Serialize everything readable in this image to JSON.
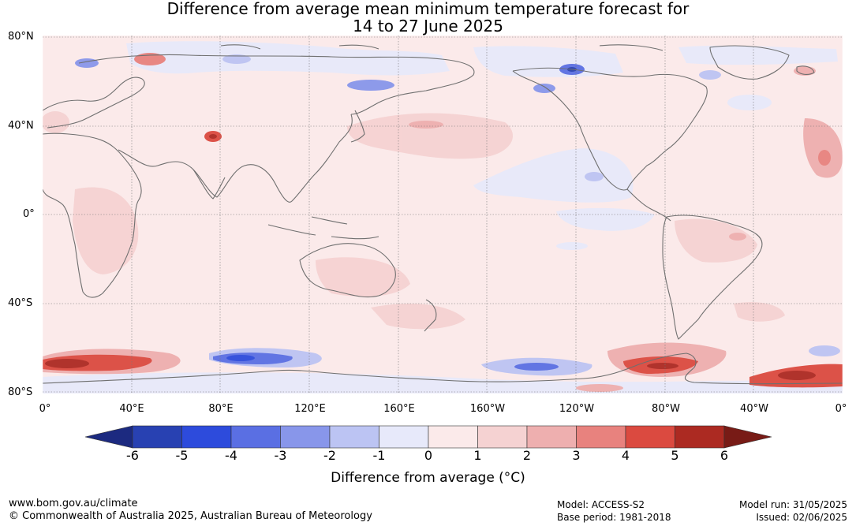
{
  "title": {
    "line1": "Difference from average mean minimum temperature forecast for",
    "line2": "14 to 27 June 2025"
  },
  "map": {
    "lat_labels": [
      "80°N",
      "40°N",
      "0°",
      "40°S",
      "80°S"
    ],
    "lon_labels": [
      "0°",
      "40°E",
      "80°E",
      "120°E",
      "160°E",
      "160°W",
      "120°W",
      "80°W",
      "40°W",
      "0°"
    ],
    "land_color": "#fbeaea",
    "coast_color": "#6f6f6f",
    "regions": [
      {
        "name": "southern-ocean-warm-atlantic",
        "bin": 5,
        "lon": [
          -10,
          40
        ],
        "lat": [
          -70,
          -60
        ]
      },
      {
        "name": "southern-ocean-cool-indian",
        "bin": -4,
        "lon": [
          75,
          120
        ],
        "lat": [
          -68,
          -58
        ]
      },
      {
        "name": "southern-ocean-cool-pacific",
        "bin": -3,
        "lon": [
          190,
          240
        ],
        "lat": [
          -70,
          -60
        ]
      },
      {
        "name": "southern-ocean-warm-east-pacific",
        "bin": 4,
        "lon": [
          260,
          310
        ],
        "lat": [
          -72,
          -62
        ]
      },
      {
        "name": "southern-ocean-warm-south-atlantic",
        "bin": 5,
        "lon": [
          315,
          360
        ],
        "lat": [
          -72,
          -62
        ]
      },
      {
        "name": "arctic-cool-eurasia",
        "bin": -1,
        "lon": [
          20,
          170
        ],
        "lat": [
          62,
          80
        ]
      },
      {
        "name": "north-pacific-cool",
        "bin": -1,
        "lon": [
          190,
          290
        ],
        "lat": [
          5,
          30
        ]
      },
      {
        "name": "tibet-warm",
        "bin": 4,
        "lon": [
          70,
          85
        ],
        "lat": [
          32,
          38
        ]
      },
      {
        "name": "east-pacific-warm",
        "bin": 1,
        "lon": [
          170,
          250
        ],
        "lat": [
          30,
          45
        ]
      }
    ]
  },
  "colorbar": {
    "bins": [
      {
        "lo": -6,
        "hi": -5,
        "color": "#2841b2"
      },
      {
        "lo": -5,
        "hi": -4,
        "color": "#2d4bdc"
      },
      {
        "lo": -4,
        "hi": -3,
        "color": "#5a6fe3"
      },
      {
        "lo": -3,
        "hi": -2,
        "color": "#8896ea"
      },
      {
        "lo": -2,
        "hi": -1,
        "color": "#bcc4f3"
      },
      {
        "lo": -1,
        "hi": 0,
        "color": "#e7e9fa"
      },
      {
        "lo": 0,
        "hi": 1,
        "color": "#fbeaea"
      },
      {
        "lo": 1,
        "hi": 2,
        "color": "#f5d2d2"
      },
      {
        "lo": 2,
        "hi": 3,
        "color": "#eeafaf"
      },
      {
        "lo": 3,
        "hi": 4,
        "color": "#e8827e"
      },
      {
        "lo": 4,
        "hi": 5,
        "color": "#db4a40"
      },
      {
        "lo": 5,
        "hi": 6,
        "color": "#ac2a22"
      }
    ],
    "under_color": "#1c2a80",
    "over_color": "#781b16",
    "ticks": [
      "-6",
      "-5",
      "-4",
      "-3",
      "-2",
      "-1",
      "0",
      "1",
      "2",
      "3",
      "4",
      "5",
      "6"
    ],
    "label": "Difference from average (°C)"
  },
  "footer": {
    "url": "www.bom.gov.au/climate",
    "copyright": "© Commonwealth of Australia 2025, Australian Bureau of Meteorology",
    "model": "Model: ACCESS-S2",
    "base_period": "Base period: 1981-2018",
    "model_run": "Model run: 31/05/2025",
    "issued": "Issued: 02/06/2025"
  }
}
